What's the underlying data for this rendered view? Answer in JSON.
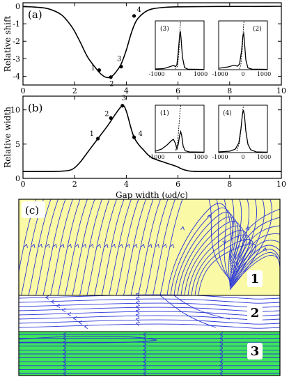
{
  "chart_data": [
    {
      "id": "a",
      "type": "line",
      "panel_label": "(a)",
      "ylabel": "Relative shift",
      "xlim": [
        0,
        10
      ],
      "ylim": [
        -4.5,
        0.2
      ],
      "xticks": [
        0,
        2,
        4,
        6,
        8,
        10
      ],
      "yticks": [
        0,
        -1,
        -2,
        -3,
        -4
      ],
      "xtick_labels": [
        "0",
        "2",
        "4",
        "6",
        "8",
        "10"
      ],
      "ytick_labels": [
        "0",
        "-1",
        "-2",
        "-3",
        "-4"
      ],
      "series": [
        {
          "x": [
            0,
            0.5,
            1,
            1.5,
            1.9,
            2.2,
            2.5,
            2.8,
            3.0,
            3.2,
            3.4,
            3.6,
            3.8,
            4.0,
            4.2,
            4.4,
            4.7,
            5.0,
            5.5,
            6,
            7,
            8,
            9,
            10
          ],
          "y": [
            -0.02,
            -0.05,
            -0.15,
            -0.5,
            -1.2,
            -2.0,
            -2.9,
            -3.5,
            -3.85,
            -4.05,
            -4.05,
            -3.75,
            -3.3,
            -2.5,
            -1.5,
            -0.8,
            -0.35,
            -0.15,
            -0.06,
            -0.03,
            -0.02,
            -0.01,
            -0.01,
            0.0
          ]
        }
      ],
      "points": [
        {
          "label": "1",
          "x": 2.95,
          "y": -3.65
        },
        {
          "label": "2",
          "x": 3.4,
          "y": -4.05
        },
        {
          "label": "3",
          "x": 3.8,
          "y": -3.45
        },
        {
          "label": "4",
          "x": 4.3,
          "y": -0.55
        }
      ],
      "insets": [
        {
          "label": "(3)",
          "xticks": [
            "-1000",
            "0",
            "1000"
          ],
          "ylim": [
            0,
            1
          ]
        },
        {
          "label": "(2)",
          "xticks": [
            "-1000",
            "0",
            "1000"
          ],
          "ylim": [
            0,
            1
          ]
        }
      ]
    },
    {
      "id": "b",
      "type": "line",
      "panel_label": "(b)",
      "ylabel": "Relative width",
      "xlabel": "Gap width (ωd/c)",
      "xlim": [
        0,
        10
      ],
      "ylim": [
        0,
        12
      ],
      "xticks": [
        0,
        2,
        4,
        6,
        8,
        10
      ],
      "yticks": [
        0,
        5,
        10
      ],
      "xtick_labels": [
        "0",
        "2",
        "4",
        "6",
        "8",
        "10"
      ],
      "ytick_labels": [
        "0",
        "5",
        "10"
      ],
      "series": [
        {
          "x": [
            0,
            1,
            1.5,
            1.9,
            2.2,
            2.5,
            2.9,
            3.3,
            3.6,
            3.85,
            4.0,
            4.3,
            4.7,
            5.0,
            5.5,
            5.9,
            6.2,
            6.5,
            7,
            8,
            9,
            10
          ],
          "y": [
            1.0,
            1.0,
            1.05,
            1.3,
            2.3,
            3.8,
            5.8,
            7.8,
            9.5,
            10.6,
            9.8,
            6.0,
            4.0,
            3.0,
            2.3,
            1.8,
            1.3,
            1.05,
            1.0,
            1.0,
            1.0,
            1.0
          ]
        }
      ],
      "points": [
        {
          "label": "1",
          "x": 2.9,
          "y": 5.8
        },
        {
          "label": "2",
          "x": 3.4,
          "y": 8.8
        },
        {
          "label": "3",
          "x": 3.85,
          "y": 10.6
        },
        {
          "label": "4",
          "x": 4.3,
          "y": 6.0
        }
      ],
      "insets": [
        {
          "label": "(1)",
          "xticks": [
            "-1000",
            "0",
            "1000"
          ],
          "ylim": [
            0,
            1
          ]
        },
        {
          "label": "(4)",
          "xticks": [
            "-1000",
            "0",
            "1000"
          ],
          "ylim": [
            0,
            1
          ]
        }
      ]
    }
  ],
  "panel_c": {
    "label": "(c)",
    "regions": [
      "1",
      "2",
      "3"
    ],
    "colors": {
      "region1": "#fafaa6",
      "region2": "#ffffff",
      "region3": "#3ee65a",
      "streamline": "#2a35d8"
    }
  }
}
